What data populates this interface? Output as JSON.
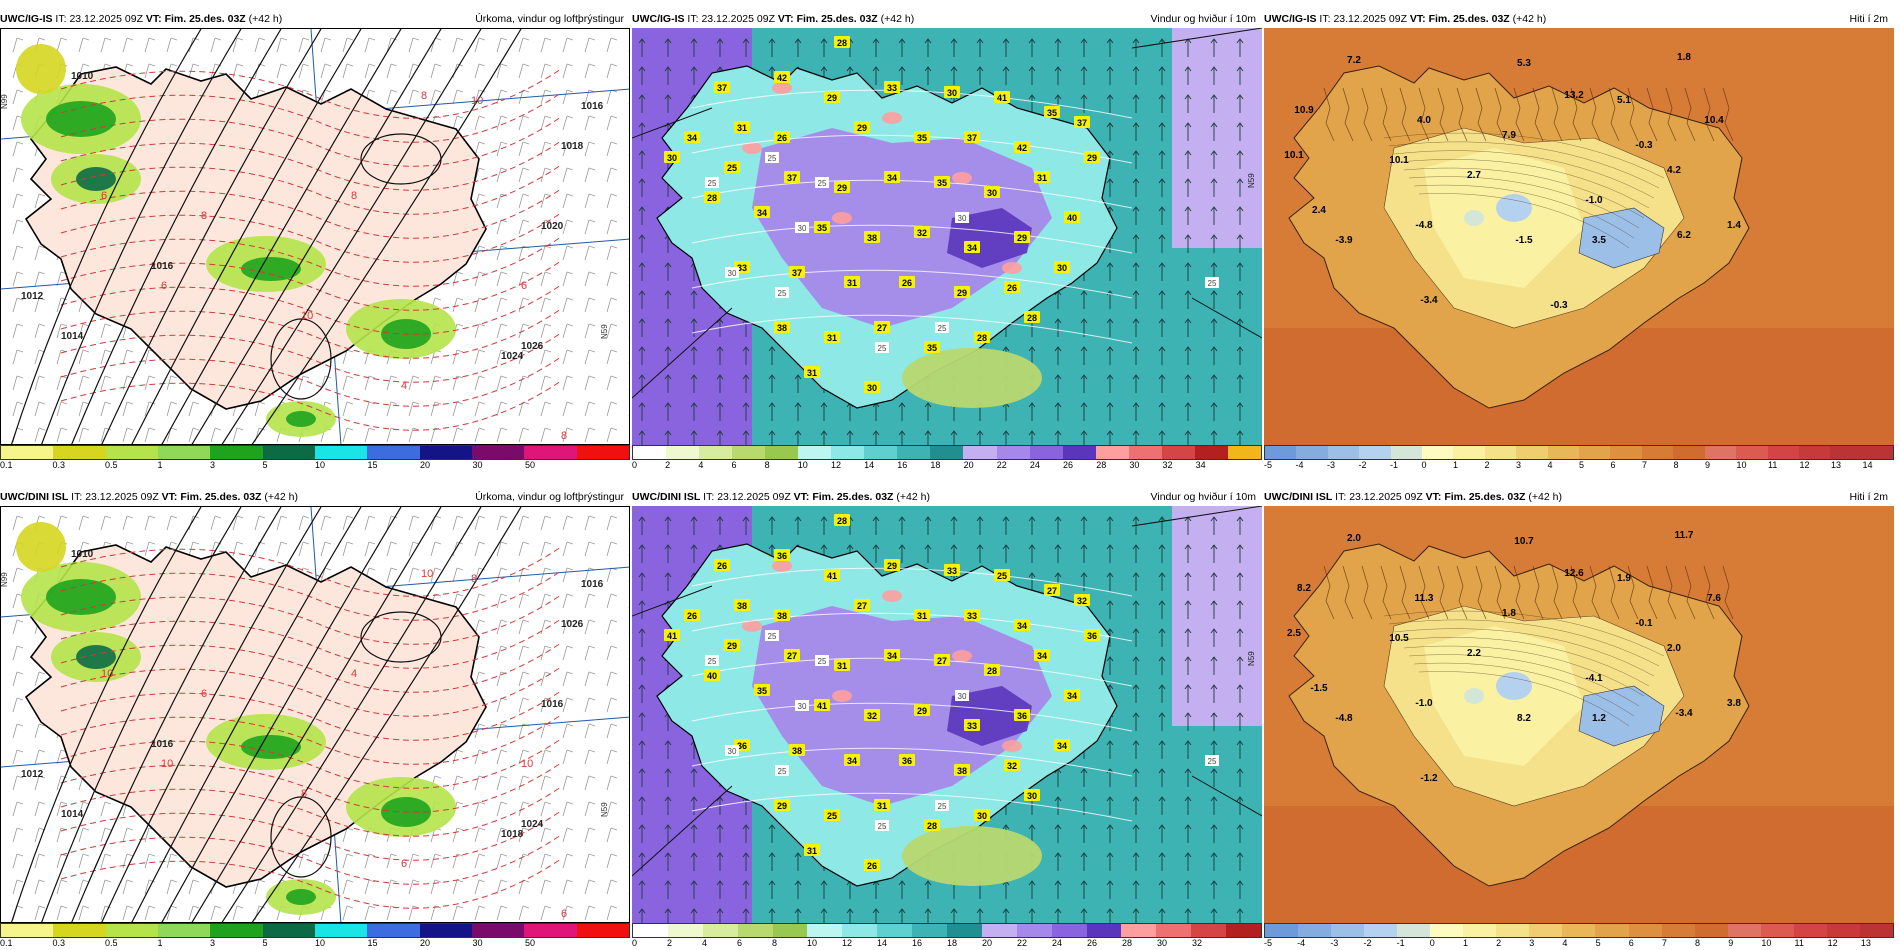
{
  "rows": [
    {
      "model": "UWC/IG-IS",
      "panels": [
        {
          "type": "precip",
          "it_label": "IT:",
          "it": "23.12.2025 09Z",
          "vt_label": "VT:",
          "vt": "Fim. 25.des. 03Z",
          "lead": "(+42 h)",
          "title": "Úrkoma, vindur og loftþrýstingur",
          "legend_ticks": [
            "0.1",
            "0.3",
            "0.5",
            "1",
            "3",
            "5",
            "10",
            "15",
            "20",
            "30",
            "50"
          ],
          "isobar_labels": [
            "1016",
            "1014",
            "1012",
            "1010",
            "1020",
            "1024",
            "1026",
            "1018",
            "1016"
          ],
          "contour_labels": [
            "8",
            "10",
            "6",
            "8",
            "6",
            "8",
            "10",
            "4",
            "6",
            "8"
          ],
          "grid_labels": [
            "N99",
            "N59"
          ]
        },
        {
          "type": "wind",
          "it_label": "IT:",
          "it": "23.12.2025 09Z",
          "vt_label": "VT:",
          "vt": "Fim. 25.des. 03Z",
          "lead": "(+42 h)",
          "title": "Vindur og hviður í 10m",
          "legend_ticks": [
            "0",
            "2",
            "4",
            "6",
            "8",
            "10",
            "12",
            "14",
            "16",
            "18",
            "20",
            "22",
            "24",
            "26",
            "28",
            "30",
            "32",
            "34"
          ],
          "gust_labels": [
            "28",
            "37",
            "42",
            "29",
            "33",
            "30",
            "41",
            "35",
            "34",
            "31",
            "26",
            "29",
            "35",
            "37",
            "42",
            "37",
            "30",
            "25",
            "37",
            "29",
            "34",
            "35",
            "30",
            "31",
            "29",
            "28",
            "34",
            "35",
            "38",
            "32",
            "34",
            "29",
            "40",
            "33",
            "37",
            "31",
            "26",
            "29",
            "26",
            "30",
            "38",
            "31",
            "27",
            "35",
            "28",
            "28",
            "31",
            "30"
          ],
          "iso_labels": [
            "25",
            "25",
            "30",
            "25",
            "30",
            "25",
            "25",
            "30",
            "25",
            "25"
          ],
          "grid_labels": [
            "N59"
          ]
        },
        {
          "type": "temp",
          "it_label": "IT:",
          "it": "23.12.2025 09Z",
          "vt_label": "VT:",
          "vt": "Fim. 25.des. 03Z",
          "lead": "(+42 h)",
          "title": "Hiti í 2m",
          "legend_ticks": [
            "-5",
            "-4",
            "-3",
            "-2",
            "-1",
            "0",
            "1",
            "2",
            "3",
            "4",
            "5",
            "6",
            "7",
            "8",
            "9",
            "10",
            "11",
            "12",
            "13",
            "14"
          ],
          "temp_labels": [
            "7.2",
            "5.3",
            "1.8",
            "10.9",
            "4.0",
            "13.2",
            "5.1",
            "10.4",
            "10.1",
            "7.9",
            "-0.3",
            "10.1",
            "2.7",
            "4.2",
            "2.4",
            "-1.0",
            "-3.9",
            "-4.8",
            "-1.5",
            "3.5",
            "6.2",
            "1.4",
            "-3.4",
            "-0.3"
          ]
        }
      ]
    },
    {
      "model": "UWC/DINI ISL",
      "panels": [
        {
          "type": "precip",
          "it_label": "IT:",
          "it": "23.12.2025 09Z",
          "vt_label": "VT:",
          "vt": "Fim. 25.des. 03Z",
          "lead": "(+42 h)",
          "title": "Úrkoma, vindur og loftþrýstingur",
          "legend_ticks": [
            "0.1",
            "0.3",
            "0.5",
            "1",
            "3",
            "5",
            "10",
            "15",
            "20",
            "30",
            "50"
          ],
          "isobar_labels": [
            "1016",
            "1014",
            "1012",
            "1010",
            "1016",
            "1018",
            "1024",
            "1026",
            "1016"
          ],
          "contour_labels": [
            "10",
            "8",
            "10",
            "6",
            "10",
            "4",
            "8",
            "6",
            "10",
            "6"
          ],
          "grid_labels": [
            "N99",
            "N59"
          ]
        },
        {
          "type": "wind",
          "it_label": "IT:",
          "it": "23.12.2025 09Z",
          "vt_label": "VT:",
          "vt": "Fim. 25.des. 03Z",
          "lead": "(+42 h)",
          "title": "Vindur og hviður í 10m",
          "legend_ticks": [
            "0",
            "2",
            "4",
            "6",
            "8",
            "10",
            "12",
            "14",
            "16",
            "18",
            "20",
            "22",
            "24",
            "26",
            "28",
            "30",
            "32"
          ],
          "gust_labels": [
            "28",
            "26",
            "36",
            "41",
            "29",
            "33",
            "25",
            "27",
            "26",
            "38",
            "38",
            "27",
            "31",
            "33",
            "34",
            "32",
            "41",
            "29",
            "27",
            "31",
            "34",
            "27",
            "28",
            "34",
            "36",
            "40",
            "35",
            "41",
            "32",
            "29",
            "33",
            "36",
            "34",
            "36",
            "38",
            "34",
            "36",
            "38",
            "32",
            "34",
            "29",
            "25",
            "31",
            "28",
            "30",
            "30",
            "31",
            "26"
          ],
          "iso_labels": [
            "25",
            "25",
            "30",
            "25",
            "30",
            "25",
            "25",
            "30",
            "25",
            "25"
          ],
          "grid_labels": [
            "N59"
          ]
        },
        {
          "type": "temp",
          "it_label": "IT:",
          "it": "23.12.2025 09Z",
          "vt_label": "VT:",
          "vt": "Fim. 25.des. 03Z",
          "lead": "(+42 h)",
          "title": "Hiti í 2m",
          "legend_ticks": [
            "-5",
            "-4",
            "-3",
            "-2",
            "-1",
            "0",
            "1",
            "2",
            "3",
            "4",
            "5",
            "6",
            "7",
            "8",
            "9",
            "10",
            "11",
            "12",
            "13"
          ],
          "temp_labels": [
            "2.0",
            "10.7",
            "11.7",
            "8.2",
            "11.3",
            "12.6",
            "1.9",
            "7.6",
            "2.5",
            "1.8",
            "-0.1",
            "10.5",
            "2.2",
            "2.0",
            "-1.5",
            "-4.1",
            "-4.8",
            "-1.0",
            "8.2",
            "1.2",
            "-3.4",
            "3.8",
            "-1.2"
          ]
        }
      ]
    }
  ],
  "colors": {
    "precip_scale": [
      "#f5f58c",
      "#d6d620",
      "#b5e34a",
      "#8fd85a",
      "#1fa31f",
      "#0c6b45",
      "#19e5e5",
      "#3d6be0",
      "#141488",
      "#7a0b6b",
      "#e0157a",
      "#f01010"
    ],
    "wind_scale": [
      "#ffffff",
      "#f0f8d0",
      "#d8eca0",
      "#b8d870",
      "#98c850",
      "#bdf5f0",
      "#8ee8e6",
      "#5fd0d0",
      "#3db3b3",
      "#1f8f8f",
      "#c4b0f0",
      "#a688ea",
      "#8a64df",
      "#5b36bd",
      "#ff9e9e",
      "#ee7070",
      "#d64545",
      "#b22020",
      "#f0b61a",
      "#e0a020"
    ],
    "temp_scale": [
      "#6d9ad8",
      "#84acdf",
      "#9cbfe8",
      "#b5d1f0",
      "#d4e6d8",
      "#fdfbc0",
      "#faf1a2",
      "#f5e18a",
      "#efcd70",
      "#e8b858",
      "#e2a44a",
      "#dc9040",
      "#d67c36",
      "#d06c30",
      "#e07464",
      "#dc5a50",
      "#d44444",
      "#c83a3a",
      "#bb3333"
    ]
  }
}
